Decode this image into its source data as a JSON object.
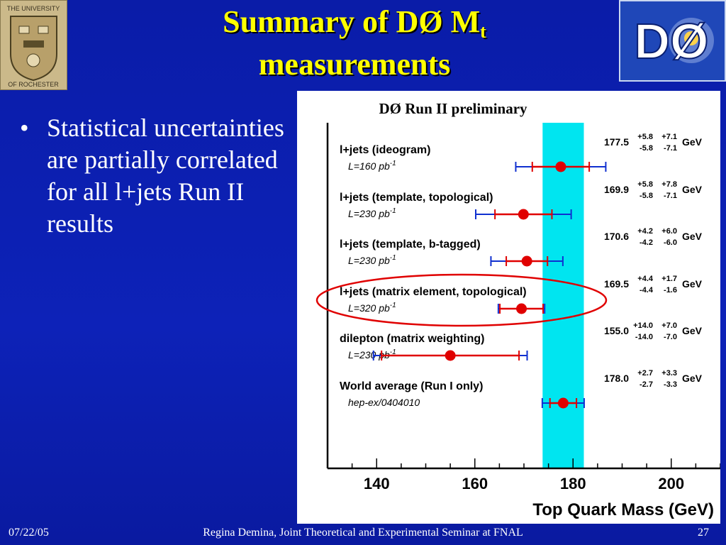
{
  "slide": {
    "title_main": "Summary of DØ M",
    "title_sub": "t",
    "title_line2": "measurements",
    "bullets": [
      "Statistical uncertainties are partially correlated for all l+jets Run II results"
    ],
    "logo_left_text": [
      "THE UNIVERSITY",
      "OF ROCHESTER"
    ],
    "logo_right_text": "DØ",
    "footer": {
      "date": "07/22/05",
      "center": "Regina Demina, Joint Theoretical and Experimental Seminar at FNAL",
      "page": "27"
    },
    "colors": {
      "background": "#0b1fb0",
      "title": "#ffff00",
      "band": "#00e5f0",
      "stat": "#e00000",
      "total": "#1030d0",
      "highlight": "#e00000"
    }
  },
  "chart_data": {
    "type": "scatter",
    "title": "DØ Run II preliminary",
    "xlabel": "Top Quark Mass (GeV)",
    "xlim": [
      130,
      210
    ],
    "xticks": [
      140,
      160,
      180,
      200
    ],
    "band": [
      173.8,
      182.2
    ],
    "unit": "GeV",
    "measurements": [
      {
        "label": "l+jets (ideogram)",
        "lumi": "L=160 pb",
        "lumi_exp": "-1",
        "value": 177.5,
        "value_text": "177.5",
        "stat_up": "+5.8",
        "stat_dn": "-5.8",
        "syst_up": "+7.1",
        "syst_dn": "-7.1",
        "stat": 5.8,
        "syst": 7.1,
        "highlight": false
      },
      {
        "label": "l+jets (template, topological)",
        "lumi": "L=230 pb",
        "lumi_exp": "-1",
        "value": 169.9,
        "value_text": "169.9",
        "stat_up": "+5.8",
        "stat_dn": "-5.8",
        "syst_up": "+7.8",
        "syst_dn": "-7.1",
        "stat": 5.8,
        "syst": 7.8,
        "highlight": false
      },
      {
        "label": "l+jets (template, b-tagged)",
        "lumi": "L=230 pb",
        "lumi_exp": "-1",
        "value": 170.6,
        "value_text": "170.6",
        "stat_up": "+4.2",
        "stat_dn": "-4.2",
        "syst_up": "+6.0",
        "syst_dn": "-6.0",
        "stat": 4.2,
        "syst": 6.0,
        "highlight": false
      },
      {
        "label": "l+jets (matrix element, topological)",
        "lumi": "L=320 pb",
        "lumi_exp": "-1",
        "value": 169.5,
        "value_text": "169.5",
        "stat_up": "+4.4",
        "stat_dn": "-4.4",
        "syst_up": "+1.7",
        "syst_dn": "-1.6",
        "stat": 4.4,
        "syst": 1.7,
        "highlight": true
      },
      {
        "label": "dilepton (matrix weighting)",
        "lumi": "L=230 pb",
        "lumi_exp": "-1",
        "value": 155.0,
        "value_text": "155.0",
        "stat_up": "+14.0",
        "stat_dn": "-14.0",
        "syst_up": "+7.0",
        "syst_dn": "-7.0",
        "stat": 14.0,
        "syst": 7.0,
        "highlight": false
      },
      {
        "label": "World average (Run I only)",
        "lumi": "hep-ex/0404010",
        "lumi_exp": "",
        "value": 178.0,
        "value_text": "178.0",
        "stat_up": "+2.7",
        "stat_dn": "-2.7",
        "syst_up": "+3.3",
        "syst_dn": "-3.3",
        "stat": 2.7,
        "syst": 3.3,
        "highlight": false
      }
    ]
  }
}
